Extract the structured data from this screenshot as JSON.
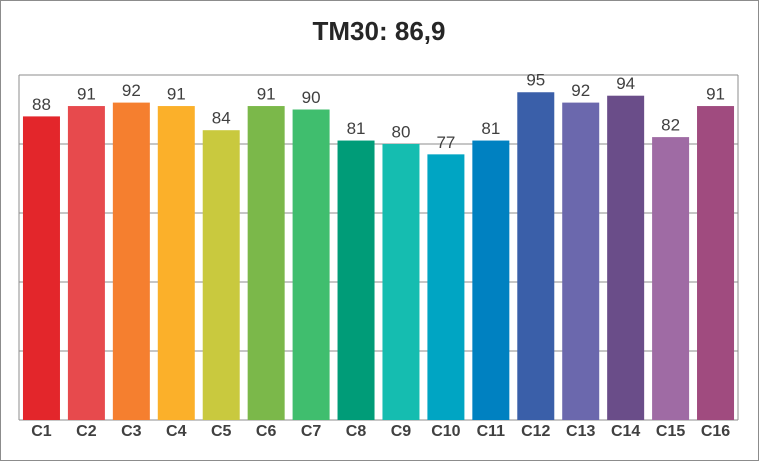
{
  "chart_data": {
    "type": "bar",
    "title": "TM30: 86,9",
    "categories": [
      "C1",
      "C2",
      "C3",
      "C4",
      "C5",
      "C6",
      "C7",
      "C8",
      "C9",
      "C10",
      "C11",
      "C12",
      "C13",
      "C14",
      "C15",
      "C16"
    ],
    "values": [
      88,
      91,
      92,
      91,
      84,
      91,
      90,
      81,
      80,
      77,
      81,
      95,
      92,
      94,
      82,
      91
    ],
    "colors": [
      "#e3262b",
      "#e74a4d",
      "#f57f2f",
      "#fbb02a",
      "#c9c93e",
      "#7bb84a",
      "#40be6e",
      "#009c78",
      "#15bdb0",
      "#00a5c3",
      "#0081c1",
      "#3a5fa9",
      "#6b68ad",
      "#6a4d89",
      "#9f6ba4",
      "#a04b7f"
    ],
    "ylim": [
      0,
      100
    ],
    "yticks": [
      0,
      20,
      40,
      60,
      80,
      100
    ],
    "grid": true
  }
}
